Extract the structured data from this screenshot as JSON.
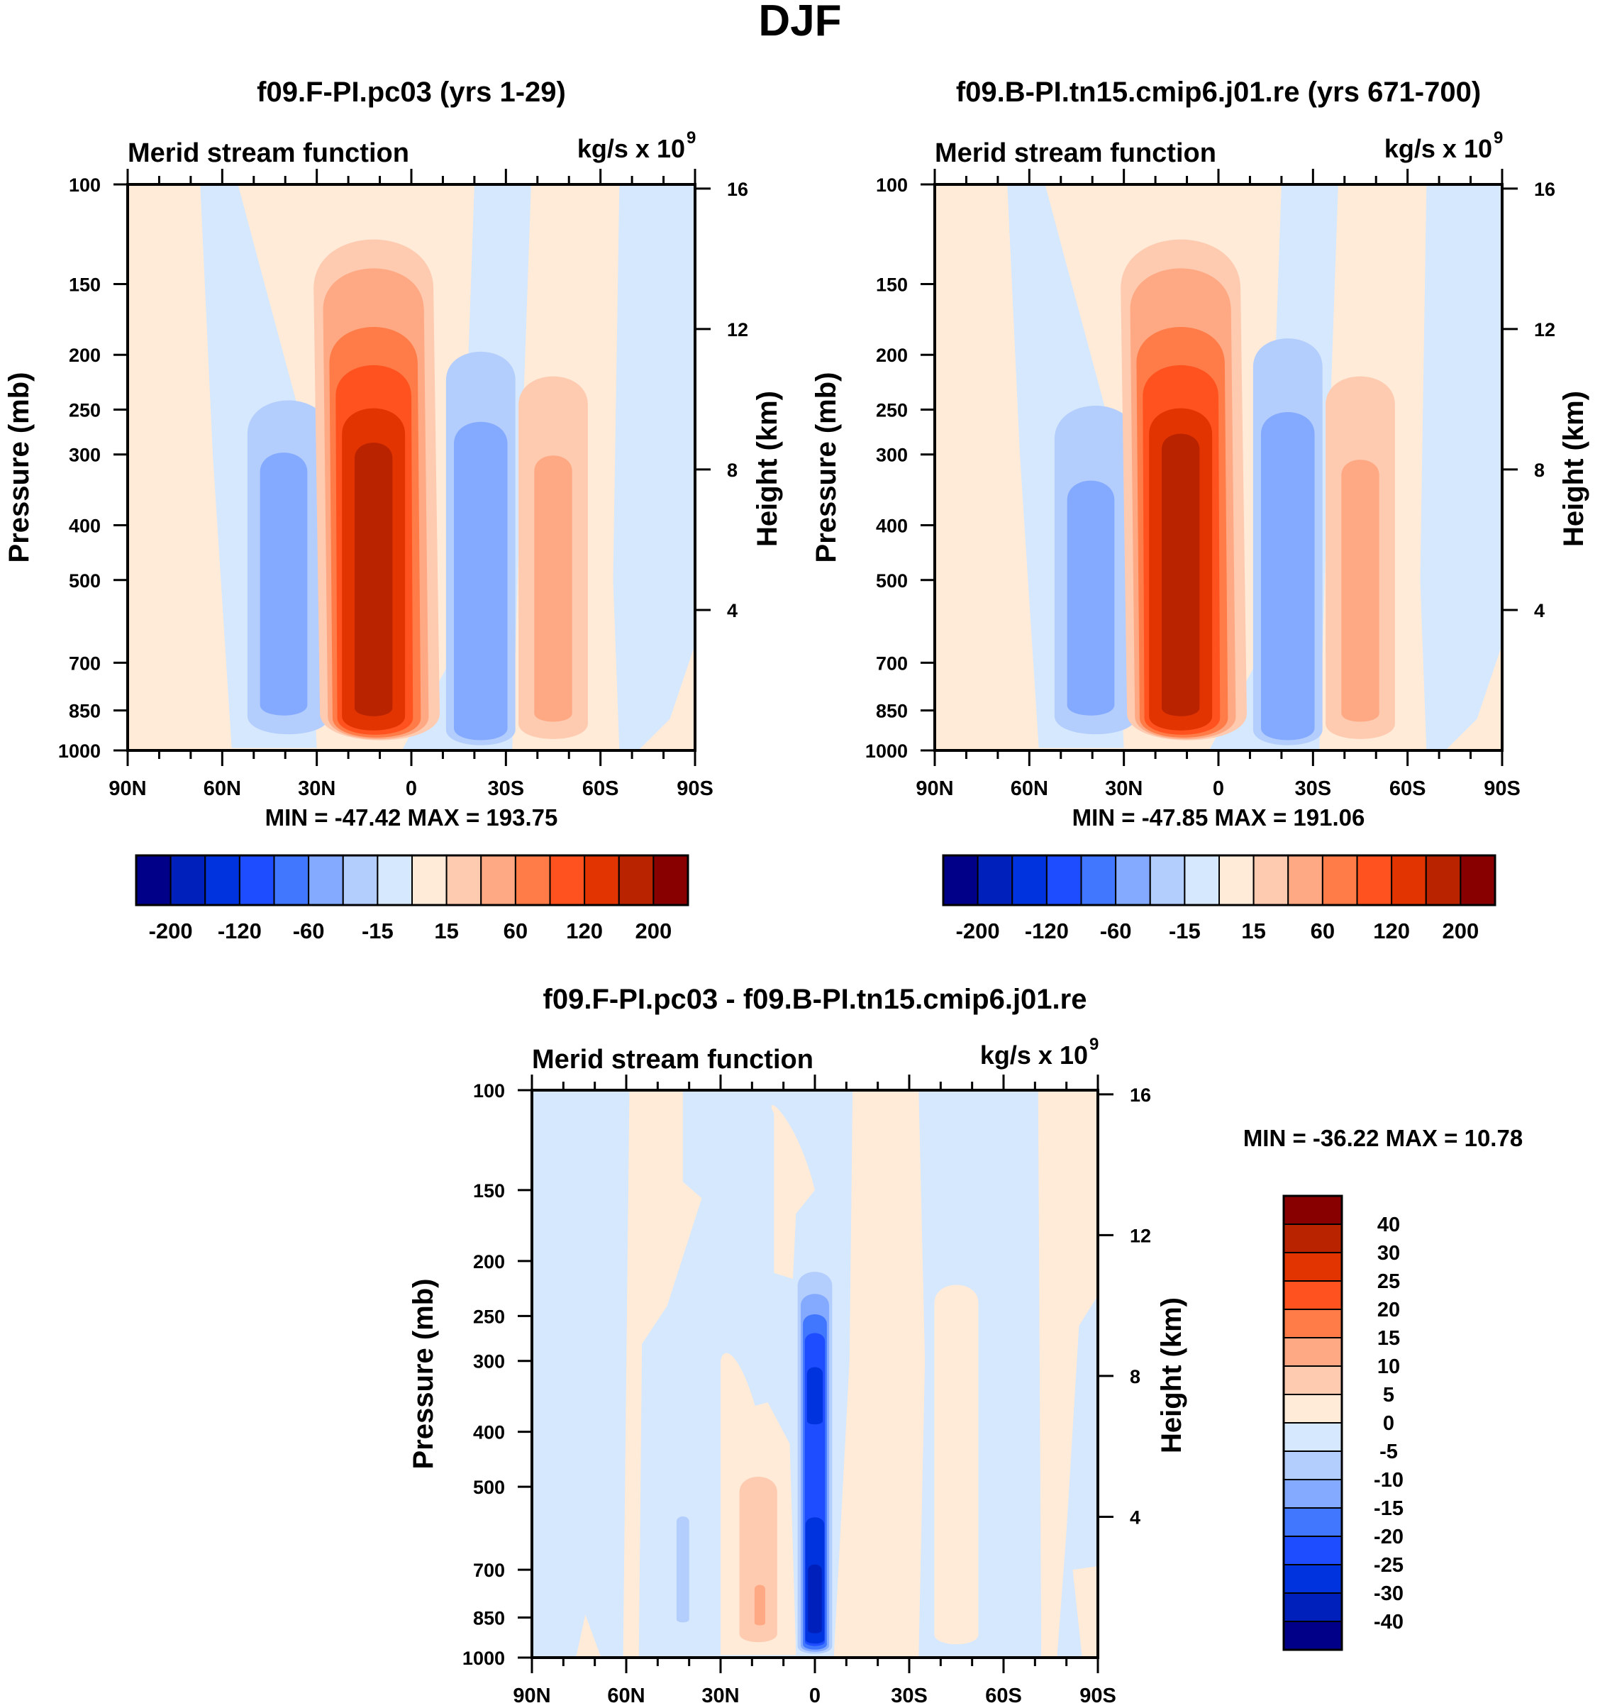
{
  "figure": {
    "title": "DJF"
  },
  "colors": {
    "main_scale": [
      "#000088",
      "#0020bb",
      "#0033dd",
      "#1e4dff",
      "#4177ff",
      "#84aaff",
      "#b3cdfd",
      "#d5e8fd",
      "#ffebd8",
      "#fecbb1",
      "#fea983",
      "#ff7b48",
      "#ff521e",
      "#e23400",
      "#b92300",
      "#880000"
    ],
    "diff_scale": [
      "#000088",
      "#0020bb",
      "#0033dd",
      "#1e4dff",
      "#4177ff",
      "#84aaff",
      "#b3cdfd",
      "#d5e8fd",
      "#ffebd8",
      "#fecbb1",
      "#fea983",
      "#ff7b48",
      "#ff521e",
      "#e23400",
      "#b92300",
      "#880000"
    ]
  },
  "chart_data": [
    {
      "type": "heatmap",
      "panel": "top-left",
      "title": "f09.F-PI.pc03 (yrs 1-29)",
      "left_string": "Merid stream function",
      "right_string": "kg/s x 10",
      "right_string_exp": "9",
      "xlabel": "",
      "ylabel": "Pressure (mb)",
      "ylabel_right": "Height (km)",
      "x_ticks": [
        "90N",
        "60N",
        "30N",
        "0",
        "30S",
        "60S",
        "90S"
      ],
      "x_range": [
        90,
        -90
      ],
      "y_ticks": [
        "100",
        "150",
        "200",
        "250",
        "300",
        "400",
        "500",
        "700",
        "850",
        "1000"
      ],
      "y_range_mb": [
        100,
        1000
      ],
      "y_scale": "log",
      "y_right_ticks": [
        "16",
        "12",
        "8",
        "4"
      ],
      "minmax_text": "MIN = -47.42  MAX = 193.75",
      "min": -47.42,
      "max": 193.75,
      "colorbar": {
        "orientation": "horizontal",
        "levels": [
          -200,
          -160,
          -120,
          -80,
          -60,
          -40,
          -15,
          0,
          15,
          40,
          60,
          80,
          120,
          160,
          200
        ],
        "labels": [
          "-200",
          "-120",
          "-60",
          "-15",
          "15",
          "60",
          "120",
          "200"
        ]
      },
      "cells": [
        {
          "name": "NH Ferrel cell",
          "sign": "negative",
          "lat_center": 40,
          "p_top": 230,
          "p_bottom": 990,
          "peak_level": "-40 to -60"
        },
        {
          "name": "Hadley cell (winter)",
          "sign": "positive",
          "lat_center": 12,
          "p_top": 115,
          "p_bottom": 1000,
          "peak_level": ">160"
        },
        {
          "name": "Summer Hadley cell",
          "sign": "negative",
          "lat_center": -22,
          "p_top": 190,
          "p_bottom": 1000,
          "peak_level": "-40 to -60"
        },
        {
          "name": "SH Ferrel cell",
          "sign": "positive",
          "lat_center": -45,
          "p_top": 210,
          "p_bottom": 980,
          "peak_level": "40 to 60"
        }
      ]
    },
    {
      "type": "heatmap",
      "panel": "top-right",
      "title": "f09.B-PI.tn15.cmip6.j01.re (yrs 671-700)",
      "left_string": "Merid stream function",
      "right_string": "kg/s x 10",
      "right_string_exp": "9",
      "xlabel": "",
      "ylabel": "Pressure (mb)",
      "ylabel_right": "Height (km)",
      "x_ticks": [
        "90N",
        "60N",
        "30N",
        "0",
        "30S",
        "60S",
        "90S"
      ],
      "x_range": [
        90,
        -90
      ],
      "y_ticks": [
        "100",
        "150",
        "200",
        "250",
        "300",
        "400",
        "500",
        "700",
        "850",
        "1000"
      ],
      "y_range_mb": [
        100,
        1000
      ],
      "y_scale": "log",
      "y_right_ticks": [
        "16",
        "12",
        "8",
        "4"
      ],
      "minmax_text": "MIN = -47.85  MAX = 191.06",
      "min": -47.85,
      "max": 191.06,
      "colorbar": {
        "orientation": "horizontal",
        "levels": [
          -200,
          -160,
          -120,
          -80,
          -60,
          -40,
          -15,
          0,
          15,
          40,
          60,
          80,
          120,
          160,
          200
        ],
        "labels": [
          "-200",
          "-120",
          "-60",
          "-15",
          "15",
          "60",
          "120",
          "200"
        ]
      },
      "cells": [
        {
          "name": "NH Ferrel cell",
          "sign": "negative",
          "lat_center": 40,
          "p_top": 235,
          "p_bottom": 990,
          "peak_level": "-40 to -60"
        },
        {
          "name": "Hadley cell (winter)",
          "sign": "positive",
          "lat_center": 12,
          "p_top": 115,
          "p_bottom": 1000,
          "peak_level": ">160"
        },
        {
          "name": "Summer Hadley cell",
          "sign": "negative",
          "lat_center": -22,
          "p_top": 180,
          "p_bottom": 1000,
          "peak_level": "-40 to -60"
        },
        {
          "name": "SH Ferrel cell",
          "sign": "positive",
          "lat_center": -45,
          "p_top": 210,
          "p_bottom": 980,
          "peak_level": "40 to 60"
        }
      ]
    },
    {
      "type": "heatmap",
      "panel": "bottom",
      "title": "f09.F-PI.pc03 - f09.B-PI.tn15.cmip6.j01.re",
      "left_string": "Merid stream function",
      "right_string": "kg/s x 10",
      "right_string_exp": "9",
      "xlabel": "",
      "ylabel": "Pressure (mb)",
      "ylabel_right": "Height (km)",
      "x_ticks": [
        "90N",
        "60N",
        "30N",
        "0",
        "30S",
        "60S",
        "90S"
      ],
      "x_range": [
        90,
        -90
      ],
      "y_ticks": [
        "100",
        "150",
        "200",
        "250",
        "300",
        "400",
        "500",
        "700",
        "850",
        "1000"
      ],
      "y_range_mb": [
        100,
        1000
      ],
      "y_scale": "log",
      "y_right_ticks": [
        "16",
        "12",
        "8",
        "4"
      ],
      "minmax_text": "MIN = -36.22  MAX =  10.78",
      "min": -36.22,
      "max": 10.78,
      "colorbar": {
        "orientation": "vertical",
        "levels": [
          -40,
          -30,
          -25,
          -20,
          -15,
          -10,
          -5,
          0,
          5,
          10,
          15,
          20,
          25,
          30,
          40
        ],
        "labels": [
          "40",
          "30",
          "25",
          "20",
          "15",
          "10",
          "5",
          "0",
          "-5",
          "-10",
          "-15",
          "-20",
          "-25",
          "-30",
          "-40"
        ]
      },
      "cells": [
        {
          "name": "Equatorial negative anomaly",
          "sign": "negative",
          "lat_center": 0,
          "p_top": 205,
          "p_bottom": 1000,
          "peak_level": "-30 to -40"
        },
        {
          "name": "Subtropical NH positive anomaly",
          "sign": "positive",
          "lat_center": 18,
          "p_top": 470,
          "p_bottom": 950,
          "peak_level": "5 to 10"
        },
        {
          "name": "NH midlatitude negative anomaly",
          "sign": "negative",
          "lat_center": 42,
          "p_top": 560,
          "p_bottom": 870,
          "peak_level": "-5 to -10"
        }
      ]
    }
  ]
}
